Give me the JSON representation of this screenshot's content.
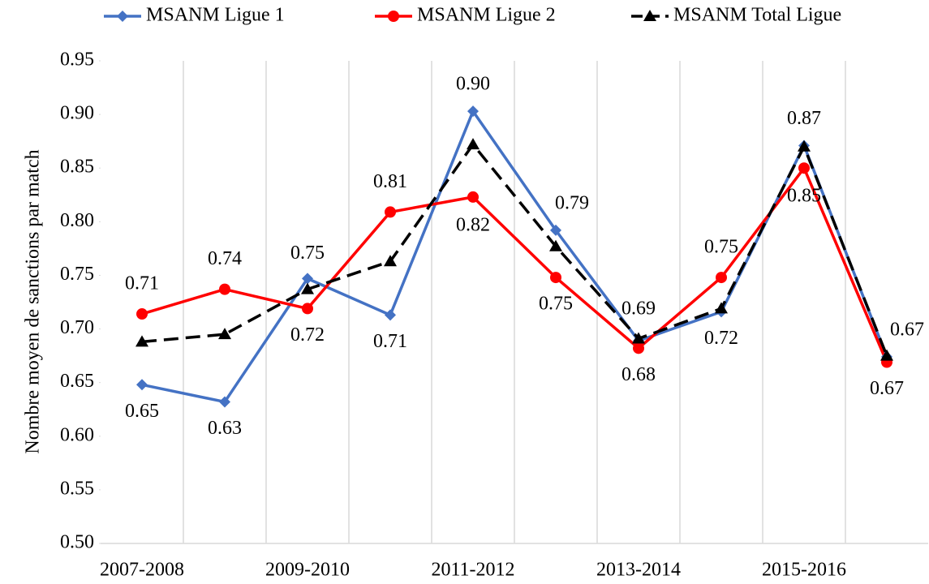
{
  "chart_data": {
    "type": "line",
    "y_label": "Nombre moyen de sanctions par match",
    "categories": [
      "2007-2008",
      null,
      "2009-2010",
      null,
      "2011-2012",
      null,
      "2013-2014",
      null,
      "2015-2016",
      null
    ],
    "series": [
      {
        "name": "MSANM Ligue 1",
        "color": "#4472c4",
        "marker": "diamond",
        "dash": false,
        "values": [
          0.648,
          0.632,
          0.747,
          0.713,
          0.903,
          0.792,
          0.689,
          0.716,
          0.871,
          0.674
        ],
        "value_labels": [
          "0.65",
          "0.63",
          "0.75",
          "0.71",
          "0.90",
          "0.79",
          "0.69",
          "0.72",
          "0.87",
          "0.67"
        ]
      },
      {
        "name": "MSANM Ligue 2",
        "color": "#ff0000",
        "marker": "circle",
        "dash": false,
        "values": [
          0.714,
          0.737,
          0.719,
          0.809,
          0.823,
          0.748,
          0.682,
          0.748,
          0.85,
          0.669
        ],
        "value_labels": [
          "0.71",
          "0.74",
          "0.72",
          "0.81",
          "0.82",
          "0.75",
          "0.68",
          "0.75",
          "0.85",
          "0.67"
        ]
      },
      {
        "name": "MSANM Total Ligue",
        "color": "#000000",
        "marker": "triangle",
        "dash": true,
        "values": [
          0.688,
          0.695,
          0.737,
          0.763,
          0.872,
          0.777,
          0.691,
          0.719,
          0.87,
          0.675
        ]
      }
    ],
    "ylim": [
      0.5,
      0.95
    ],
    "yticks": [
      {
        "value": 0.5,
        "label": "0.50"
      },
      {
        "value": 0.55,
        "label": "0.55"
      },
      {
        "value": 0.6,
        "label": "0.60"
      },
      {
        "value": 0.65,
        "label": "0.65"
      },
      {
        "value": 0.7,
        "label": "0.70"
      },
      {
        "value": 0.75,
        "label": "0.75"
      },
      {
        "value": 0.8,
        "label": "0.80"
      },
      {
        "value": 0.85,
        "label": "0.85"
      },
      {
        "value": 0.9,
        "label": "0.90"
      },
      {
        "value": 0.95,
        "label": "0.95"
      }
    ],
    "legend": "top",
    "grid": "vertical"
  }
}
